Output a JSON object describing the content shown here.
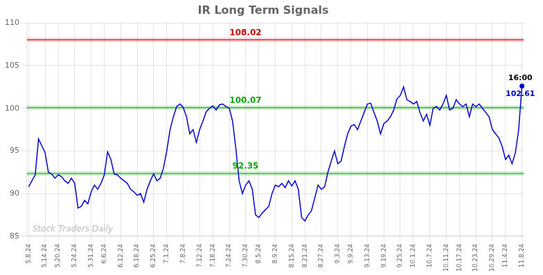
{
  "chart_data": {
    "type": "line",
    "title": "IR Long Term Signals",
    "color": "#0000cc",
    "grid": true,
    "ylim": [
      85,
      110
    ],
    "yticks": [
      85,
      90,
      95,
      100,
      105,
      110
    ],
    "categories": [
      "5.8.24",
      null,
      null,
      null,
      null,
      "5.14.24",
      null,
      null,
      null,
      "5.20.24",
      null,
      null,
      null,
      null,
      "5.24.24",
      null,
      null,
      null,
      null,
      "5.31.24",
      null,
      null,
      null,
      "6.6.24",
      null,
      null,
      null,
      null,
      "6.12.24",
      null,
      null,
      null,
      null,
      "6.18.24",
      null,
      null,
      null,
      null,
      "6.25.24",
      null,
      null,
      null,
      "7.1.24",
      null,
      null,
      null,
      null,
      "7.8.24",
      null,
      null,
      null,
      null,
      "7.12.24",
      null,
      null,
      null,
      "7.18.24",
      null,
      null,
      null,
      null,
      "7.24.24",
      null,
      null,
      null,
      null,
      "7.30.24",
      null,
      null,
      null,
      "8.5.24",
      null,
      null,
      null,
      null,
      "8.9.24",
      null,
      null,
      null,
      null,
      "8.15.24",
      null,
      null,
      null,
      "8.21.24",
      null,
      null,
      null,
      null,
      "8.27.24",
      null,
      null,
      null,
      null,
      "9.3.24",
      null,
      null,
      null,
      "9.9.24",
      null,
      null,
      null,
      null,
      "9.13.24",
      null,
      null,
      null,
      null,
      "9.19.24",
      null,
      null,
      null,
      null,
      "9.25.24",
      null,
      null,
      null,
      "10.1.24",
      null,
      null,
      null,
      null,
      "10.7.24",
      null,
      null,
      null,
      null,
      "10.11.24",
      null,
      null,
      null,
      "10.17.24",
      null,
      null,
      null,
      null,
      "10.23.24",
      null,
      null,
      null,
      null,
      "10.29.24",
      null,
      null,
      null,
      "11.4.24",
      null,
      null,
      null,
      null,
      "11.8.24"
    ],
    "values": [
      90.8,
      91.5,
      92.2,
      96.4,
      95.6,
      94.8,
      92.5,
      92.3,
      91.8,
      92.2,
      92.0,
      91.5,
      91.2,
      91.8,
      91.2,
      88.3,
      88.5,
      89.2,
      88.8,
      90.2,
      91.0,
      90.5,
      91.2,
      92.2,
      94.9,
      94.0,
      92.3,
      92.2,
      91.8,
      91.5,
      91.2,
      90.5,
      90.2,
      89.8,
      90.0,
      89.0,
      90.5,
      91.5,
      92.3,
      91.5,
      91.8,
      93.0,
      95.0,
      97.5,
      99.0,
      100.2,
      100.5,
      100.1,
      99.0,
      97.0,
      97.5,
      96.0,
      97.5,
      98.5,
      99.6,
      100.0,
      100.3,
      99.8,
      100.4,
      100.5,
      100.2,
      100.0,
      98.5,
      95.3,
      91.5,
      90.0,
      91.0,
      91.5,
      90.5,
      87.5,
      87.2,
      87.7,
      88.1,
      88.5,
      90.0,
      91.0,
      90.8,
      91.2,
      90.7,
      91.5,
      90.9,
      91.5,
      90.5,
      87.2,
      86.8,
      87.5,
      88.0,
      89.5,
      91.0,
      90.5,
      90.8,
      92.5,
      93.8,
      95.0,
      93.5,
      93.8,
      95.5,
      97.0,
      97.9,
      98.1,
      97.5,
      98.5,
      99.5,
      100.5,
      100.6,
      99.5,
      98.5,
      97.0,
      98.2,
      98.5,
      99.0,
      99.8,
      101.1,
      101.5,
      102.5,
      101.0,
      100.8,
      100.5,
      100.8,
      99.5,
      98.5,
      99.3,
      98.0,
      100.0,
      100.2,
      99.8,
      100.5,
      101.5,
      99.8,
      100.0,
      101.0,
      100.5,
      100.2,
      100.5,
      99.0,
      100.5,
      100.2,
      100.5,
      100.0,
      99.5,
      99.0,
      97.5,
      97.0,
      96.5,
      95.5,
      94.0,
      94.5,
      93.5,
      94.8,
      97.5,
      102.61
    ],
    "reference_lines": [
      {
        "value": 108.02,
        "label": "108.02",
        "color": "#cc0000"
      },
      {
        "value": 100.07,
        "label": "100.07",
        "color": "#00aa00"
      },
      {
        "value": 92.35,
        "label": "92.35",
        "color": "#00aa00"
      }
    ],
    "last_point": {
      "value": 102.61,
      "label": "16:00",
      "value_label": "102.61",
      "marker": "circle"
    },
    "watermark": {
      "text": "Stock Traders Daily",
      "color": "#bbbbbb"
    }
  }
}
